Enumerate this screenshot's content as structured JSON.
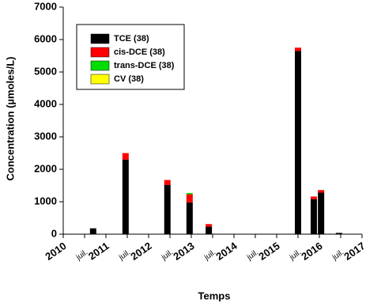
{
  "chart_data": {
    "type": "bar",
    "stacked": true,
    "y_label": "Concentration (µmoles/L)",
    "x_label": "Temps",
    "x": [
      2010.7,
      2011.46,
      2012.44,
      2012.96,
      2013.41,
      2015.5,
      2015.87,
      2016.04,
      2016.46
    ],
    "series": [
      {
        "name": "TCE (38)",
        "color": "#000000",
        "values": [
          180,
          2300,
          1520,
          980,
          230,
          5650,
          1080,
          1280,
          40
        ]
      },
      {
        "name": "cis-DCE (38)",
        "color": "#ff0000",
        "values": [
          0,
          200,
          150,
          250,
          80,
          100,
          80,
          80,
          0
        ]
      },
      {
        "name": "trans-DCE (38)",
        "color": "#00dd00",
        "values": [
          0,
          0,
          0,
          40,
          0,
          0,
          0,
          0,
          0
        ]
      },
      {
        "name": "CV (38)",
        "color": "#ffff00",
        "values": [
          0,
          0,
          0,
          0,
          0,
          0,
          0,
          0,
          0
        ]
      }
    ],
    "xlim": [
      2010,
      2017
    ],
    "xticks": [
      2010,
      {
        "value": 2010.5,
        "label": "juil."
      },
      2011,
      {
        "value": 2011.5,
        "label": "juil."
      },
      2012,
      {
        "value": 2012.5,
        "label": "juil."
      },
      2013,
      {
        "value": 2013.5,
        "label": "juil."
      },
      2014,
      {
        "value": 2014.5,
        "label": "juil."
      },
      2015,
      {
        "value": 2015.5,
        "label": "juil."
      },
      2016,
      {
        "value": 2016.5,
        "label": "juil."
      },
      2017
    ],
    "ylim": [
      0,
      7000
    ],
    "yticks": [
      0,
      1000,
      2000,
      3000,
      4000,
      5000,
      6000,
      7000
    ],
    "legend": "upper-left"
  }
}
